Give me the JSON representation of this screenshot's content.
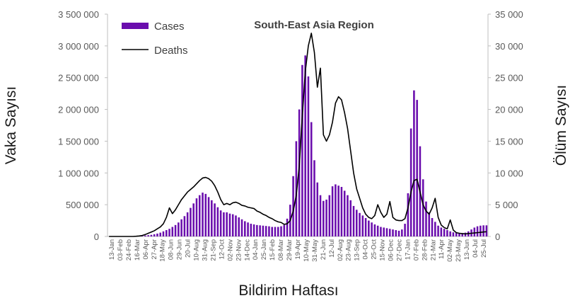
{
  "chart_data": {
    "type": "bar",
    "title": "South-East Asia Region",
    "xlabel": "Bildirim Haftası",
    "ylabel": "Vaka Sayısı",
    "y2label": "Ölüm Sayısı",
    "ylim": [
      0,
      3500000
    ],
    "y2lim": [
      0,
      35000
    ],
    "yticks": [
      "0",
      "500 000",
      "1 000 000",
      "1 500 000",
      "2 000 000",
      "2 500 000",
      "3 000 000",
      "3 500 000"
    ],
    "y2ticks": [
      "0",
      "5 000",
      "10 000",
      "15 000",
      "20 000",
      "25 000",
      "30 000",
      "35 000"
    ],
    "x_tick_labels": [
      "13-Jan",
      "03-Feb",
      "24-Feb",
      "16-Mar",
      "06-Apr",
      "27-Apr",
      "18-May",
      "08-Jun",
      "29-Jun",
      "20-Jul",
      "10-Aug",
      "31-Aug",
      "21-Sep",
      "12-Oct",
      "02-Nov",
      "23-Nov",
      "14-Dec",
      "04-Jan",
      "25-Jan",
      "15-Feb",
      "08-Mar",
      "29-Mar",
      "19-Apr",
      "10-May",
      "31-May",
      "21-Jun",
      "12-Jul",
      "02-Aug",
      "23-Aug",
      "13-Sep",
      "04-Oct",
      "25-Oct",
      "15-Nov",
      "06-Dec",
      "27-Dec",
      "17-Jan",
      "07-Feb",
      "28-Feb",
      "21-Mar",
      "11-Apr",
      "02-May",
      "23-May",
      "13-Jun",
      "04-Jul",
      "25-Jul"
    ],
    "legend_position": "top-left",
    "grid": false,
    "colors": {
      "cases": "#6a0dad",
      "deaths": "#000000"
    },
    "series": [
      {
        "name": "Cases",
        "kind": "bar",
        "axis": "left",
        "values": [
          0,
          0,
          0,
          0,
          0,
          0,
          0,
          0,
          0,
          2000,
          5000,
          8000,
          15000,
          20000,
          25000,
          35000,
          45000,
          60000,
          80000,
          100000,
          120000,
          150000,
          180000,
          220000,
          270000,
          320000,
          380000,
          450000,
          520000,
          600000,
          650000,
          690000,
          670000,
          620000,
          570000,
          520000,
          460000,
          410000,
          380000,
          380000,
          360000,
          350000,
          330000,
          300000,
          270000,
          240000,
          220000,
          200000,
          190000,
          180000,
          175000,
          170000,
          165000,
          160000,
          150000,
          150000,
          150000,
          160000,
          180000,
          280000,
          500000,
          950000,
          1500000,
          2000000,
          2700000,
          2850000,
          2520000,
          1800000,
          1200000,
          850000,
          650000,
          560000,
          580000,
          650000,
          790000,
          820000,
          800000,
          780000,
          720000,
          650000,
          570000,
          480000,
          420000,
          370000,
          330000,
          290000,
          250000,
          220000,
          190000,
          170000,
          150000,
          140000,
          130000,
          120000,
          110000,
          100000,
          90000,
          110000,
          200000,
          680000,
          1700000,
          2300000,
          2150000,
          1420000,
          900000,
          550000,
          380000,
          290000,
          230000,
          170000,
          140000,
          120000,
          100000,
          80000,
          65000,
          55000,
          50000,
          45000,
          60000,
          80000,
          110000,
          140000,
          160000,
          170000,
          175000,
          175000
        ]
      },
      {
        "name": "Deaths",
        "kind": "line",
        "axis": "right",
        "values": [
          0,
          0,
          0,
          0,
          0,
          0,
          0,
          0,
          0,
          30,
          80,
          150,
          300,
          500,
          700,
          900,
          1200,
          1500,
          2000,
          3000,
          4500,
          3600,
          4200,
          5000,
          5800,
          6400,
          7000,
          7400,
          7800,
          8300,
          8800,
          9200,
          9300,
          9100,
          8700,
          8000,
          7000,
          5800,
          5000,
          5200,
          5000,
          5300,
          5400,
          5200,
          4900,
          4800,
          4600,
          4500,
          4400,
          4000,
          3800,
          3500,
          3300,
          3000,
          2800,
          2500,
          2300,
          2200,
          1900,
          2000,
          2500,
          4000,
          6500,
          11000,
          19000,
          26000,
          30000,
          32000,
          29000,
          23500,
          26500,
          16000,
          15000,
          16000,
          18000,
          21000,
          22000,
          21500,
          19500,
          17000,
          13500,
          10000,
          7500,
          6000,
          4500,
          3500,
          3000,
          2800,
          3300,
          5000,
          3800,
          3000,
          3500,
          5500,
          3000,
          2600,
          2500,
          2500,
          2800,
          4500,
          7000,
          8800,
          9000,
          7000,
          5000,
          4000,
          3500,
          4500,
          6000,
          3000,
          1800,
          1400,
          1200,
          2600,
          1000,
          600,
          500,
          450,
          400,
          450,
          500,
          550,
          600,
          650,
          700,
          750
        ]
      }
    ]
  }
}
